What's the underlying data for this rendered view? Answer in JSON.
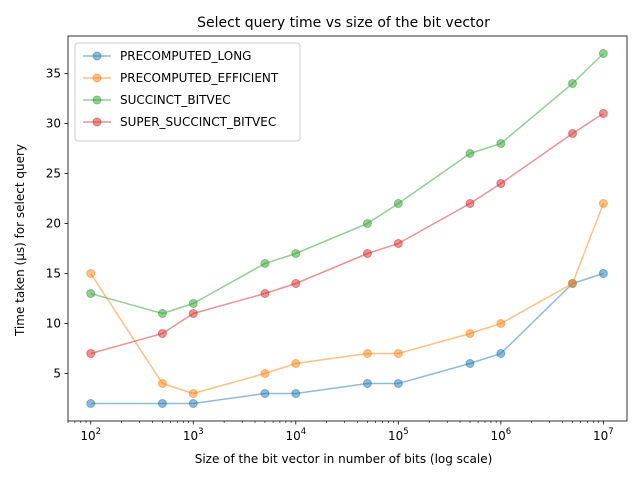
{
  "chart_data": {
    "type": "line",
    "title": "Select query time vs size of the bit vector",
    "xlabel": "Size of the bit vector in number of bits (log scale)",
    "ylabel": "Time taken (µs) for select query",
    "x_scale": "log",
    "xlim": [
      60,
      17000000
    ],
    "ylim": [
      0.25,
      38.75
    ],
    "x_ticks": [
      {
        "value": 100,
        "base": "10",
        "exp": "2"
      },
      {
        "value": 1000,
        "base": "10",
        "exp": "3"
      },
      {
        "value": 10000,
        "base": "10",
        "exp": "4"
      },
      {
        "value": 100000,
        "base": "10",
        "exp": "5"
      },
      {
        "value": 1000000,
        "base": "10",
        "exp": "6"
      },
      {
        "value": 10000000,
        "base": "10",
        "exp": "7"
      }
    ],
    "y_ticks": [
      5,
      10,
      15,
      20,
      25,
      30,
      35
    ],
    "grid": false,
    "legend_position": "top-left",
    "x": [
      100,
      500,
      1000,
      5000,
      10000,
      50000,
      100000,
      500000,
      1000000,
      5000000,
      10000000
    ],
    "series": [
      {
        "name": "PRECOMPUTED_LONG",
        "color": "#1f77b4",
        "values": [
          2,
          2,
          2,
          3,
          3,
          4,
          4,
          6,
          7,
          14,
          15
        ]
      },
      {
        "name": "PRECOMPUTED_EFFICIENT",
        "color": "#ff7f0e",
        "values": [
          15,
          4,
          3,
          5,
          6,
          7,
          7,
          9,
          10,
          14,
          22
        ]
      },
      {
        "name": "SUCCINCT_BITVEC",
        "color": "#2ca02c",
        "values": [
          13,
          11,
          12,
          16,
          17,
          20,
          22,
          27,
          28,
          34,
          37
        ]
      },
      {
        "name": "SUPER_SUCCINCT_BITVEC",
        "color": "#d62728",
        "values": [
          7,
          9,
          11,
          13,
          14,
          17,
          18,
          22,
          24,
          29,
          31
        ]
      }
    ]
  }
}
